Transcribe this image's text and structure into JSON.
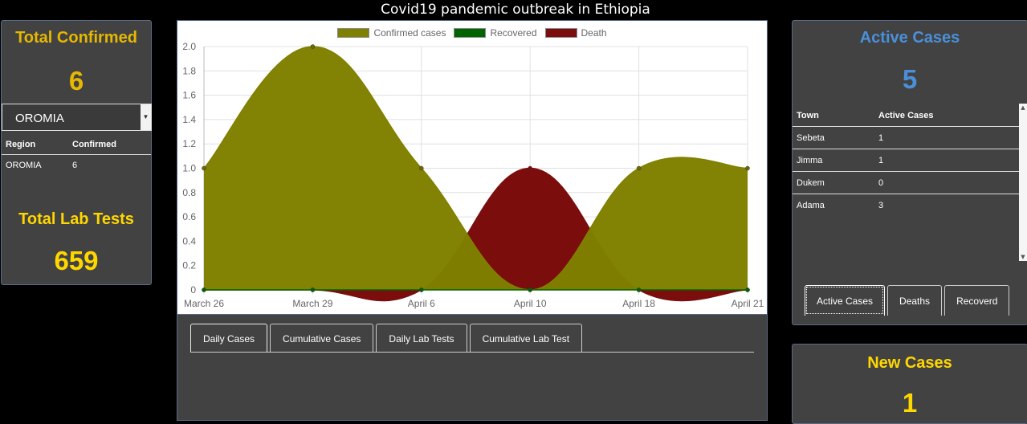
{
  "page_title": "Covid19 pandemic outbreak in Ethiopia",
  "left_panel": {
    "total_confirmed_label": "Total Confirmed",
    "total_confirmed_value": "6",
    "region_select_value": "OROMIA",
    "table_headers": [
      "Region",
      "Confirmed"
    ],
    "table_rows": [
      [
        "OROMIA",
        "6"
      ]
    ],
    "total_lab_tests_label": "Total Lab Tests",
    "total_lab_tests_value": "659"
  },
  "chart_data": {
    "type": "area",
    "categories": [
      "March 26",
      "March 29",
      "April 6",
      "April 10",
      "April 18",
      "April 21"
    ],
    "series": [
      {
        "name": "Confirmed cases",
        "values": [
          1,
          2,
          1,
          0,
          1,
          1
        ],
        "color": "#808000"
      },
      {
        "name": "Recovered",
        "values": [
          0,
          0,
          0,
          0,
          0,
          0
        ],
        "color": "#006400"
      },
      {
        "name": "Death",
        "values": [
          0,
          0,
          0,
          1,
          0,
          0
        ],
        "color": "#7b0d0d"
      }
    ],
    "y_ticks": [
      "0",
      "0.2",
      "0.4",
      "0.6",
      "0.8",
      "1.0",
      "1.2",
      "1.4",
      "1.6",
      "1.8",
      "2.0"
    ],
    "ylim": [
      0,
      2
    ],
    "grid": true,
    "legend_position": "top"
  },
  "chart_tabs": [
    "Daily Cases",
    "Cumulative Cases",
    "Daily Lab Tests",
    "Cumulative Lab Test"
  ],
  "right_panel": {
    "active_cases_label": "Active Cases",
    "active_cases_value": "5",
    "table_headers": [
      "Town",
      "Active Cases"
    ],
    "table_rows": [
      [
        "Sebeta",
        "1"
      ],
      [
        "Jimma",
        "1"
      ],
      [
        "Dukem",
        "0"
      ],
      [
        "Adama",
        "3"
      ]
    ],
    "tabs": [
      "Active Cases",
      "Deaths",
      "Recoverd"
    ]
  },
  "new_cases": {
    "label": "New Cases",
    "value": "1"
  }
}
